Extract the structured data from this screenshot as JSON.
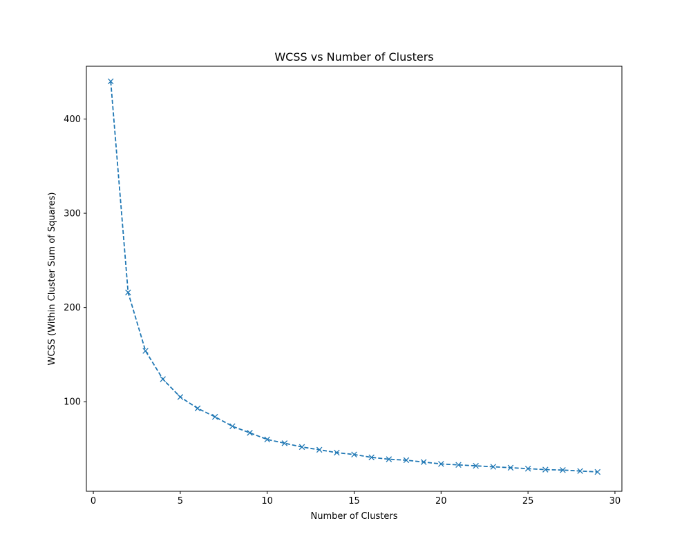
{
  "chart_data": {
    "type": "line",
    "title": "WCSS vs Number of Clusters",
    "xlabel": "Number of Clusters",
    "ylabel": "WCSS (Within Cluster Sum of Squares)",
    "xlim": [
      -0.4,
      30.4
    ],
    "ylim": [
      5,
      456
    ],
    "xticks": [
      0,
      5,
      10,
      15,
      20,
      25,
      30
    ],
    "yticks": [
      100,
      200,
      300,
      400
    ],
    "grid": false,
    "series": [
      {
        "color": "#1f77b4",
        "line_style": "dashed",
        "marker": "x",
        "x": [
          1,
          2,
          3,
          4,
          5,
          6,
          7,
          8,
          9,
          10,
          11,
          12,
          13,
          14,
          15,
          16,
          17,
          18,
          19,
          20,
          21,
          22,
          23,
          24,
          25,
          26,
          27,
          28,
          29
        ],
        "y": [
          440,
          216,
          154,
          124,
          105,
          93,
          84,
          74,
          67,
          60,
          56,
          52,
          49,
          46,
          44,
          41,
          39,
          38,
          36,
          34,
          33,
          32,
          31,
          30,
          29,
          28,
          27.5,
          26.5,
          25.5
        ]
      }
    ]
  }
}
